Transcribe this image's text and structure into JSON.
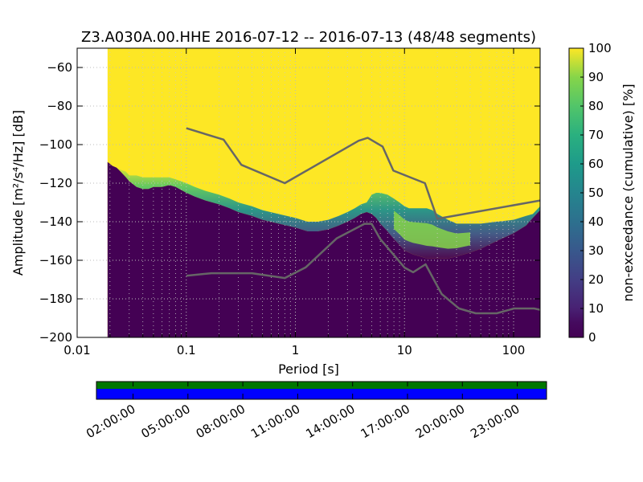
{
  "chart_data": [
    {
      "type": "heatmap",
      "title": "Z3.A030A.00.HHE   2016-07-12 -- 2016-07-13  (48/48 segments)",
      "xlabel": "Period [s]",
      "ylabel": "Amplitude [m²/s⁴/Hz] [dB]",
      "x_scale": "log",
      "xlim": [
        0.01,
        175
      ],
      "ylim": [
        -200,
        -50
      ],
      "x_ticks": [
        0.01,
        0.1,
        1,
        10,
        100
      ],
      "x_tick_labels": [
        "0.01",
        "0.1",
        "1",
        "10",
        "100"
      ],
      "y_ticks": [
        -200,
        -180,
        -160,
        -140,
        -120,
        -100,
        -80,
        -60
      ],
      "y_tick_labels": [
        "−200",
        "−180",
        "−160",
        "−140",
        "−120",
        "−100",
        "−80",
        "−60"
      ],
      "grid": true,
      "data_start_period": 0.019,
      "colorbar": {
        "label": "non-exceedance (cumulative) [%]",
        "range": [
          0,
          100
        ],
        "ticks": [
          0,
          10,
          20,
          30,
          40,
          50,
          60,
          70,
          80,
          90,
          100
        ],
        "tick_labels": [
          "0",
          "10",
          "20",
          "30",
          "40",
          "50",
          "60",
          "70",
          "80",
          "90",
          "100"
        ],
        "colormap": "viridis",
        "low_color": "#440154",
        "high_color": "#fde725"
      },
      "psd_envelope": {
        "period": [
          0.019,
          0.02,
          0.021,
          0.023,
          0.025,
          0.028,
          0.03,
          0.035,
          0.04,
          0.045,
          0.05,
          0.06,
          0.07,
          0.08,
          0.1,
          0.12,
          0.15,
          0.2,
          0.25,
          0.3,
          0.4,
          0.5,
          0.7,
          1.0,
          1.3,
          1.6,
          2.0,
          2.5,
          3.0,
          3.5,
          4.0,
          4.5,
          5.0,
          5.5,
          6.0,
          7.0,
          8.0,
          9.0,
          10.0,
          11.0,
          12.0,
          14.0,
          16.0,
          18.0,
          20.0,
          25.0,
          30.0,
          40.0,
          50.0,
          70.0,
          100.0,
          130.0,
          150.0,
          175.0
        ],
        "low_db": [
          -109,
          -110,
          -111,
          -112,
          -114,
          -117,
          -119,
          -122,
          -123,
          -123,
          -122,
          -122,
          -121,
          -122,
          -125,
          -127,
          -129,
          -131,
          -133,
          -135,
          -137,
          -139,
          -141,
          -143,
          -145,
          -145,
          -144,
          -142,
          -140,
          -138,
          -136,
          -135,
          -136,
          -138,
          -141,
          -145,
          -149,
          -152,
          -155,
          -156,
          -157,
          -158,
          -159,
          -159,
          -159,
          -159,
          -158,
          -156,
          -154,
          -150,
          -146,
          -142,
          -138,
          -134
        ],
        "high_db": [
          -109,
          -110,
          -111,
          -112,
          -113,
          -114,
          -116,
          -116,
          -117,
          -117,
          -117,
          -117,
          -117,
          -118,
          -120,
          -122,
          -124,
          -126,
          -128,
          -130,
          -132,
          -134,
          -136,
          -138,
          -140,
          -140,
          -139,
          -137,
          -135,
          -133,
          -131,
          -130,
          -126,
          -125,
          -125,
          -126,
          -128,
          -130,
          -132,
          -133,
          -133,
          -133,
          -133,
          -134,
          -136,
          -139,
          -141,
          -141,
          -141,
          -140,
          -139,
          -137,
          -136,
          -132
        ]
      },
      "series": [
        {
          "name": "new_high_noise_model",
          "color": "#666666",
          "period": [
            0.1,
            0.22,
            0.32,
            0.8,
            3.8,
            4.6,
            6.3,
            7.9,
            15.4,
            20.0,
            175.0
          ],
          "db": [
            -91.5,
            -97.4,
            -110.5,
            -120.0,
            -98.0,
            -96.5,
            -101.0,
            -113.5,
            -120.0,
            -138.5,
            -129.0
          ]
        },
        {
          "name": "new_low_noise_model",
          "color": "#666666",
          "period": [
            0.1,
            0.17,
            0.4,
            0.8,
            1.24,
            2.4,
            4.3,
            5.0,
            6.0,
            10.0,
            12.0,
            15.6,
            21.9,
            31.6,
            45.0,
            70.0,
            101.0,
            154.0,
            175.0
          ],
          "db": [
            -168.0,
            -166.7,
            -166.7,
            -169.2,
            -163.7,
            -148.6,
            -141.1,
            -141.1,
            -149.0,
            -163.8,
            -166.2,
            -162.1,
            -177.5,
            -185.0,
            -187.5,
            -187.5,
            -185.0,
            -185.0,
            -185.7
          ]
        }
      ]
    },
    {
      "type": "timeline",
      "tick_labels": [
        "02:00:00",
        "05:00:00",
        "08:00:00",
        "11:00:00",
        "14:00:00",
        "17:00:00",
        "20:00:00",
        "23:00:00"
      ],
      "tick_hours": [
        2,
        5,
        8,
        11,
        14,
        17,
        20,
        23
      ],
      "span_hours": [
        0,
        24.6
      ],
      "tracks": [
        {
          "name": "data_coverage",
          "color": "#007700",
          "start_hours": 0,
          "end_hours": 24.6
        },
        {
          "name": "processed_segments",
          "color": "#0000ff",
          "start_hours": 0,
          "end_hours": 24.6
        }
      ]
    }
  ]
}
